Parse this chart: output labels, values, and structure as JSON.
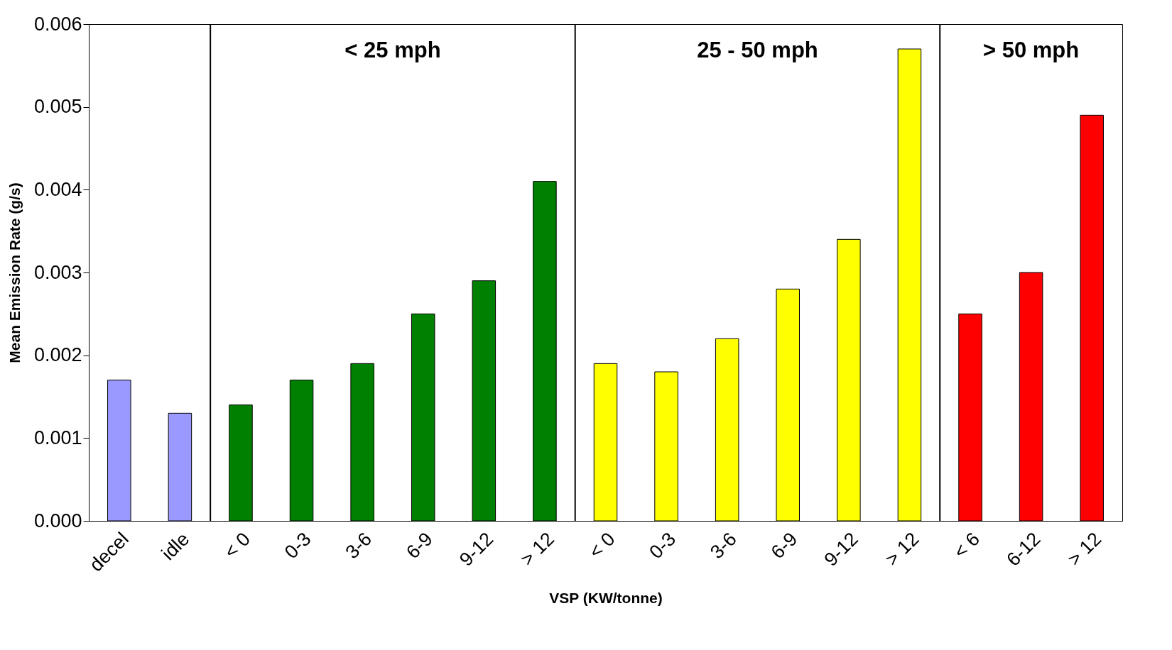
{
  "chart_data": {
    "type": "bar",
    "ylabel": "Mean Emission Rate (g/s)",
    "xlabel": "VSP (KW/tonne)",
    "categories": [
      "decel",
      "idle",
      "< 0",
      "0-3",
      "3-6",
      "6-9",
      "9-12",
      "> 12",
      "< 0",
      "0-3",
      "3-6",
      "6-9",
      "9-12",
      "> 12",
      "< 6",
      "6-12",
      "> 12"
    ],
    "series": [
      {
        "color": "#9999ff",
        "values": [
          0.0017,
          0.0013,
          null,
          null,
          null,
          null,
          null,
          null,
          null,
          null,
          null,
          null,
          null,
          null,
          null,
          null,
          null
        ]
      },
      {
        "color": "#008000",
        "values": [
          null,
          null,
          0.0014,
          0.0017,
          0.0019,
          0.0025,
          0.0029,
          0.0041,
          null,
          null,
          null,
          null,
          null,
          null,
          null,
          null,
          null
        ]
      },
      {
        "color": "#ffff00",
        "values": [
          null,
          null,
          null,
          null,
          null,
          null,
          null,
          null,
          0.0019,
          0.0018,
          0.0022,
          0.0028,
          0.0034,
          0.0057,
          null,
          null,
          null
        ]
      },
      {
        "color": "#ff0000",
        "values": [
          null,
          null,
          null,
          null,
          null,
          null,
          null,
          null,
          null,
          null,
          null,
          null,
          null,
          null,
          0.0025,
          0.003,
          0.0049
        ]
      }
    ],
    "ylim": [
      0,
      0.006
    ],
    "yticks": [
      {
        "value": 0,
        "label": "0.000"
      },
      0.001,
      0.002,
      0.003,
      0.004,
      0.005,
      0.006
    ],
    "annotations": [
      "< 25 mph",
      "25 - 50 mph",
      "> 50 mph"
    ],
    "grid": false,
    "legend": false
  }
}
